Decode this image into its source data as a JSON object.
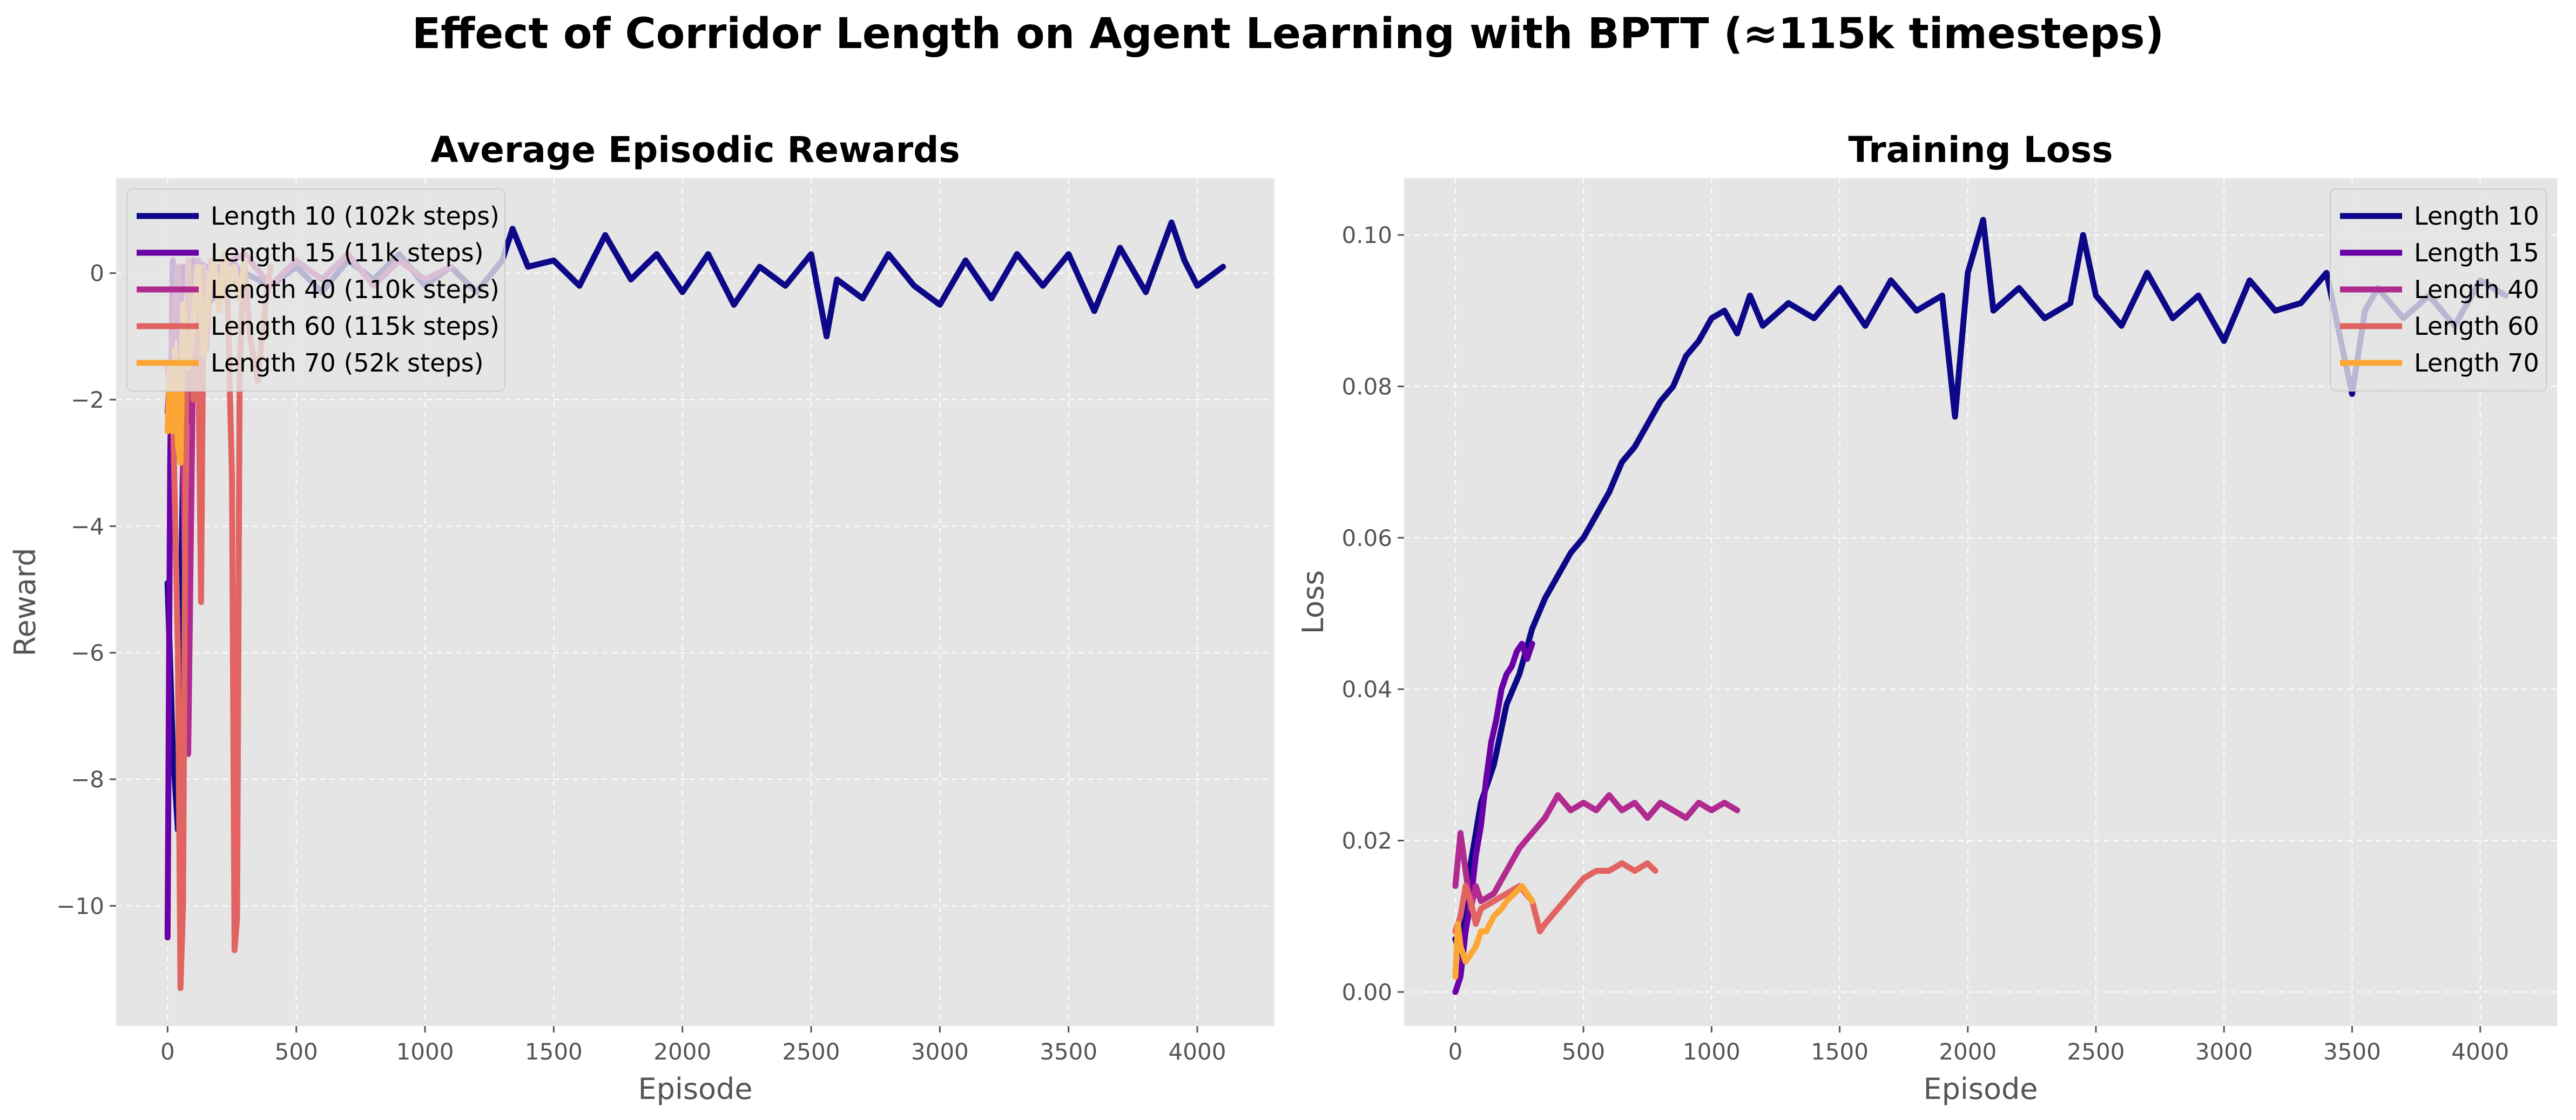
{
  "suptitle": "Effect of Corridor Length on Agent Learning with BPTT (≈115k timesteps)",
  "colors": {
    "background": "#e5e5e5",
    "grid": "#ffffff",
    "series": [
      "#0d0887",
      "#6a00a8",
      "#b12a90",
      "#e16462",
      "#fca636"
    ]
  },
  "chart_data": [
    {
      "type": "line",
      "title": "Average Episodic Rewards",
      "xlabel": "Episode",
      "ylabel": "Reward",
      "xlim": [
        -200,
        4300
      ],
      "ylim": [
        -11.9,
        1.5
      ],
      "xticks": [
        0,
        500,
        1000,
        1500,
        2000,
        2500,
        3000,
        3500,
        4000
      ],
      "xtick_labels": [
        "0",
        "500",
        "1000",
        "1500",
        "2000",
        "2500",
        "3000",
        "3500",
        "4000"
      ],
      "yticks": [
        0,
        -2,
        -4,
        -6,
        -8,
        -10
      ],
      "ytick_labels": [
        "0",
        "−2",
        "−4",
        "−6",
        "−8",
        "−10"
      ],
      "grid": true,
      "legend_position": "upper-left",
      "series": [
        {
          "name": "Length 10 (102k steps)",
          "x": [
            0,
            20,
            40,
            60,
            100,
            150,
            200,
            300,
            400,
            500,
            600,
            700,
            800,
            900,
            1000,
            1100,
            1200,
            1300,
            1340,
            1400,
            1500,
            1600,
            1700,
            1800,
            1900,
            2000,
            2100,
            2200,
            2300,
            2400,
            2500,
            2560,
            2600,
            2700,
            2800,
            2900,
            3000,
            3100,
            3200,
            3300,
            3400,
            3500,
            3600,
            3700,
            3800,
            3900,
            3950,
            4000,
            4100
          ],
          "y": [
            -4.9,
            -7.5,
            -8.8,
            -3,
            -1,
            -0.5,
            -0.3,
            0,
            -0.2,
            0.1,
            -0.3,
            0.2,
            -0.1,
            0.3,
            -0.2,
            0.1,
            -0.3,
            0.2,
            0.7,
            0.1,
            0.2,
            -0.2,
            0.6,
            -0.1,
            0.3,
            -0.3,
            0.3,
            -0.5,
            0.1,
            -0.2,
            0.3,
            -1,
            -0.1,
            -0.4,
            0.3,
            -0.2,
            -0.5,
            0.2,
            -0.4,
            0.3,
            -0.2,
            0.3,
            -0.6,
            0.4,
            -0.3,
            0.8,
            0.2,
            -0.2,
            0.1
          ]
        },
        {
          "name": "Length 15 (11k steps)",
          "x": [
            0,
            10,
            20,
            40,
            60,
            80,
            100,
            150,
            200,
            250,
            300
          ],
          "y": [
            -10.5,
            -3,
            0.2,
            -1,
            0.1,
            -0.3,
            0.2,
            0.1,
            0,
            0.2,
            -0.1
          ]
        },
        {
          "name": "Length 40 (110k steps)",
          "x": [
            0,
            20,
            40,
            60,
            80,
            100,
            120,
            150,
            200,
            300,
            400,
            500,
            600,
            700,
            800,
            900,
            1000,
            1100
          ],
          "y": [
            -2.2,
            -1,
            0.1,
            -3,
            -7.6,
            -1,
            0.2,
            -0.5,
            0.1,
            0.3,
            -0.2,
            0.2,
            -0.1,
            0.3,
            -0.2,
            0.2,
            -0.1,
            0.1
          ]
        },
        {
          "name": "Length 60 (115k steps)",
          "x": [
            0,
            20,
            40,
            50,
            60,
            70,
            80,
            90,
            100,
            110,
            120,
            130,
            140,
            150,
            170,
            200,
            230,
            250,
            260,
            270,
            280,
            290,
            300,
            320,
            350,
            380,
            400
          ],
          "y": [
            -1.5,
            -2,
            -6,
            -11.3,
            -10,
            -3,
            0.2,
            -1,
            -2,
            0.1,
            -1.5,
            -5.2,
            0.1,
            -1.2,
            0.2,
            -0.5,
            0.1,
            -3.2,
            -10.7,
            -10.2,
            -1.5,
            -0.5,
            0.1,
            -1,
            -1.7,
            -0.5,
            0.1
          ]
        },
        {
          "name": "Length 70 (52k steps)",
          "x": [
            0,
            10,
            20,
            30,
            40,
            50,
            60,
            80,
            100,
            120,
            140,
            160,
            180,
            200,
            220,
            240,
            260,
            280,
            300
          ],
          "y": [
            -2.5,
            -1.5,
            -2.5,
            -1.2,
            -2.7,
            -3,
            -0.5,
            -1.5,
            -0.8,
            0.1,
            -1.3,
            -0.2,
            0.2,
            -0.6,
            0.3,
            -0.2,
            0.1,
            -0.4,
            0.2
          ]
        }
      ]
    },
    {
      "type": "line",
      "title": "Training Loss",
      "xlabel": "Episode",
      "ylabel": "Loss",
      "xlim": [
        -200,
        4300
      ],
      "ylim": [
        -0.0045,
        0.1075
      ],
      "xticks": [
        0,
        500,
        1000,
        1500,
        2000,
        2500,
        3000,
        3500,
        4000
      ],
      "xtick_labels": [
        "0",
        "500",
        "1000",
        "1500",
        "2000",
        "2500",
        "3000",
        "3500",
        "4000"
      ],
      "yticks": [
        0,
        0.02,
        0.04,
        0.06,
        0.08,
        0.1
      ],
      "ytick_labels": [
        "0.00",
        "0.02",
        "0.04",
        "0.06",
        "0.08",
        "0.10"
      ],
      "grid": true,
      "legend_position": "upper-right",
      "series": [
        {
          "name": "Length 10",
          "x": [
            0,
            20,
            50,
            100,
            150,
            200,
            250,
            300,
            350,
            400,
            450,
            500,
            550,
            600,
            650,
            700,
            750,
            800,
            850,
            900,
            950,
            1000,
            1050,
            1100,
            1150,
            1200,
            1300,
            1400,
            1500,
            1600,
            1700,
            1800,
            1900,
            1950,
            2000,
            2060,
            2100,
            2200,
            2300,
            2400,
            2450,
            2500,
            2600,
            2700,
            2800,
            2900,
            3000,
            3100,
            3200,
            3300,
            3400,
            3500,
            3550,
            3600,
            3700,
            3800,
            3900,
            4000,
            4100
          ],
          "y": [
            0.007,
            0.005,
            0.015,
            0.025,
            0.03,
            0.038,
            0.042,
            0.048,
            0.052,
            0.055,
            0.058,
            0.06,
            0.063,
            0.066,
            0.07,
            0.072,
            0.075,
            0.078,
            0.08,
            0.084,
            0.086,
            0.089,
            0.09,
            0.087,
            0.092,
            0.088,
            0.091,
            0.089,
            0.093,
            0.088,
            0.094,
            0.09,
            0.092,
            0.076,
            0.095,
            0.102,
            0.09,
            0.093,
            0.089,
            0.091,
            0.1,
            0.092,
            0.088,
            0.095,
            0.089,
            0.092,
            0.086,
            0.094,
            0.09,
            0.091,
            0.095,
            0.079,
            0.09,
            0.093,
            0.089,
            0.092,
            0.088,
            0.094,
            0.092
          ]
        },
        {
          "name": "Length 15",
          "x": [
            0,
            20,
            40,
            60,
            80,
            100,
            120,
            140,
            160,
            180,
            200,
            220,
            240,
            260,
            280,
            300
          ],
          "y": [
            0,
            0.002,
            0.008,
            0.012,
            0.018,
            0.022,
            0.028,
            0.033,
            0.036,
            0.04,
            0.042,
            0.043,
            0.045,
            0.046,
            0.044,
            0.046
          ]
        },
        {
          "name": "Length 40",
          "x": [
            0,
            20,
            40,
            60,
            80,
            100,
            150,
            200,
            250,
            300,
            350,
            400,
            450,
            500,
            550,
            600,
            650,
            700,
            750,
            800,
            850,
            900,
            950,
            1000,
            1050,
            1100
          ],
          "y": [
            0.014,
            0.021,
            0.016,
            0.011,
            0.014,
            0.012,
            0.013,
            0.016,
            0.019,
            0.021,
            0.023,
            0.026,
            0.024,
            0.025,
            0.024,
            0.026,
            0.024,
            0.025,
            0.023,
            0.025,
            0.024,
            0.023,
            0.025,
            0.024,
            0.025,
            0.024
          ]
        },
        {
          "name": "Length 60",
          "x": [
            0,
            20,
            40,
            60,
            80,
            100,
            150,
            200,
            250,
            300,
            330,
            350,
            400,
            450,
            500,
            550,
            600,
            650,
            700,
            750,
            780
          ],
          "y": [
            0.008,
            0.01,
            0.014,
            0.012,
            0.009,
            0.011,
            0.012,
            0.013,
            0.014,
            0.012,
            0.008,
            0.009,
            0.011,
            0.013,
            0.015,
            0.016,
            0.016,
            0.017,
            0.016,
            0.017,
            0.016
          ]
        },
        {
          "name": "Length 70",
          "x": [
            0,
            10,
            20,
            40,
            60,
            80,
            100,
            120,
            150,
            180,
            200,
            230,
            260,
            280,
            300
          ],
          "y": [
            0.002,
            0.009,
            0.006,
            0.004,
            0.005,
            0.006,
            0.008,
            0.008,
            0.01,
            0.011,
            0.012,
            0.013,
            0.014,
            0.013,
            0.012
          ]
        }
      ]
    }
  ]
}
